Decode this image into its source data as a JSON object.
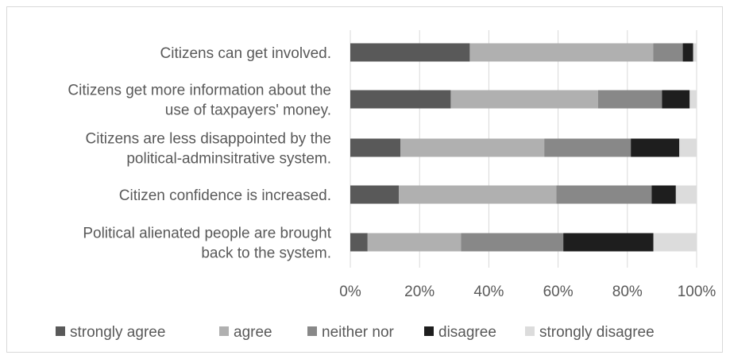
{
  "chart_data": {
    "type": "bar",
    "orientation": "horizontal",
    "stacked": "percent",
    "categories": [
      [
        "Citizens can get involved."
      ],
      [
        "Citizens get more information about the",
        "use of taxpayers' money."
      ],
      [
        "Citizens are less disappointed by the",
        "political-adminsitrative system."
      ],
      [
        "Citizen confidence is increased."
      ],
      [
        "Political alienated people are brought",
        "back to the system."
      ]
    ],
    "series": [
      {
        "name": "strongly agree",
        "color": "#595959",
        "values": [
          34.5,
          29.0,
          14.5,
          14.0,
          5.0
        ]
      },
      {
        "name": "agree",
        "color": "#b0b0b0",
        "values": [
          53.0,
          42.5,
          41.5,
          45.5,
          27.0
        ]
      },
      {
        "name": "neither nor",
        "color": "#888888",
        "values": [
          8.5,
          18.5,
          25.0,
          27.5,
          29.5
        ]
      },
      {
        "name": "disagree",
        "color": "#1e1e1e",
        "values": [
          3.0,
          8.0,
          14.0,
          7.0,
          26.0
        ]
      },
      {
        "name": "strongly disagree",
        "color": "#dcdcdc",
        "values": [
          1.0,
          2.0,
          5.0,
          6.0,
          12.5
        ]
      }
    ],
    "x_ticks": [
      "0%",
      "20%",
      "40%",
      "60%",
      "80%",
      "100%"
    ],
    "xlim": [
      0,
      100
    ],
    "grid": true,
    "legend_position": "bottom"
  }
}
